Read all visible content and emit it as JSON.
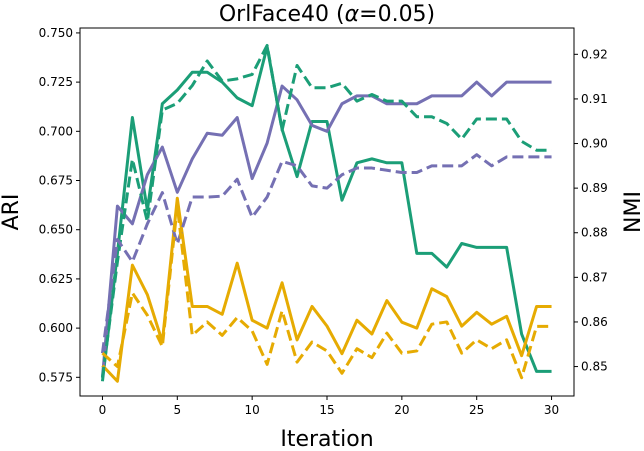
{
  "chart_data": {
    "type": "line",
    "title": "OrlFace40 (α=0.05)",
    "title_prefix": "OrlFace40 (",
    "title_symbol": "α",
    "title_suffix": "=0.05)",
    "xlabel": "Iteration",
    "ylabel_left": "ARI",
    "ylabel_right": "NMI",
    "xlim": [
      -1.5,
      31.5
    ],
    "ylim_left": [
      0.5655,
      0.7525
    ],
    "ylim_right": [
      0.8434,
      0.9259
    ],
    "x_ticks": [
      0,
      5,
      10,
      15,
      20,
      25,
      30
    ],
    "y_left_ticks": [
      "0.575",
      "0.600",
      "0.625",
      "0.650",
      "0.675",
      "0.700",
      "0.725",
      "0.750"
    ],
    "y_right_ticks": [
      "0.85",
      "0.86",
      "0.87",
      "0.88",
      "0.89",
      "0.90",
      "0.91",
      "0.92"
    ],
    "grid": false,
    "legend": "none",
    "x": [
      0,
      1,
      2,
      3,
      4,
      5,
      6,
      7,
      8,
      9,
      10,
      11,
      12,
      13,
      14,
      15,
      16,
      17,
      18,
      19,
      20,
      21,
      22,
      23,
      24,
      25,
      26,
      27,
      28,
      29,
      30
    ],
    "series": [
      {
        "axis": "left",
        "color": "#1b9e77",
        "dash": "solid",
        "values": [
          0.573,
          0.638,
          0.707,
          0.66,
          0.714,
          0.721,
          0.73,
          0.73,
          0.725,
          0.717,
          0.713,
          0.743,
          0.701,
          0.677,
          0.705,
          0.705,
          0.665,
          0.684,
          0.686,
          0.684,
          0.684,
          0.638,
          0.638,
          0.631,
          0.643,
          0.641,
          0.641,
          0.641,
          0.597,
          0.578,
          0.578
        ]
      },
      {
        "axis": "left",
        "color": "#7570b3",
        "dash": "solid",
        "values": [
          0.575,
          0.662,
          0.653,
          0.678,
          0.692,
          0.669,
          0.686,
          0.699,
          0.698,
          0.707,
          0.676,
          0.694,
          0.723,
          0.716,
          0.703,
          0.7,
          0.714,
          0.718,
          0.718,
          0.714,
          0.714,
          0.714,
          0.718,
          0.718,
          0.718,
          0.725,
          0.718,
          0.725,
          0.725,
          0.725,
          0.725
        ]
      },
      {
        "axis": "left",
        "color": "#e6ab02",
        "dash": "solid",
        "values": [
          0.581,
          0.573,
          0.632,
          0.617,
          0.593,
          0.666,
          0.611,
          0.611,
          0.607,
          0.633,
          0.604,
          0.6,
          0.623,
          0.594,
          0.611,
          0.601,
          0.587,
          0.604,
          0.597,
          0.614,
          0.603,
          0.6,
          0.62,
          0.616,
          0.601,
          0.608,
          0.602,
          0.606,
          0.586,
          0.611,
          0.611
        ]
      },
      {
        "axis": "right",
        "color": "#1b9e77",
        "dash": "dashed",
        "values": [
          0.8475,
          0.8735,
          0.8965,
          0.8825,
          0.9075,
          0.909,
          0.913,
          0.9185,
          0.914,
          0.9145,
          0.9155,
          0.922,
          0.903,
          0.9175,
          0.9125,
          0.9125,
          0.9135,
          0.9095,
          0.911,
          0.9095,
          0.9095,
          0.906,
          0.906,
          0.9045,
          0.901,
          0.9055,
          0.9055,
          0.9055,
          0.9005,
          0.8985,
          0.8985
        ]
      },
      {
        "axis": "right",
        "color": "#7570b3",
        "dash": "dashed",
        "values": [
          0.853,
          0.8785,
          0.8735,
          0.882,
          0.889,
          0.8775,
          0.888,
          0.888,
          0.8882,
          0.892,
          0.8835,
          0.888,
          0.896,
          0.895,
          0.8905,
          0.89,
          0.893,
          0.8945,
          0.8945,
          0.894,
          0.8935,
          0.8935,
          0.895,
          0.895,
          0.895,
          0.8975,
          0.895,
          0.897,
          0.897,
          0.897,
          0.897
        ]
      },
      {
        "axis": "right",
        "color": "#e6ab02",
        "dash": "dashed",
        "values": [
          0.853,
          0.85,
          0.8665,
          0.8615,
          0.8545,
          0.886,
          0.857,
          0.86,
          0.857,
          0.861,
          0.858,
          0.8505,
          0.8625,
          0.851,
          0.8555,
          0.8535,
          0.8485,
          0.854,
          0.852,
          0.8575,
          0.853,
          0.8535,
          0.8595,
          0.86,
          0.853,
          0.856,
          0.854,
          0.856,
          0.8475,
          0.859,
          0.859
        ]
      }
    ]
  }
}
